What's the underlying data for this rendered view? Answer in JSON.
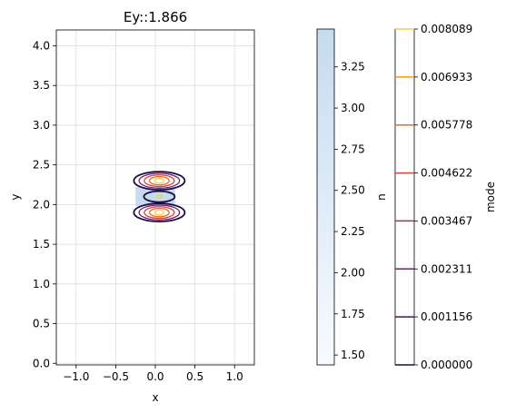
{
  "chart_data": {
    "type": "contour",
    "title": "Ey::1.866",
    "xlabel": "x",
    "ylabel": "y",
    "xlim": [
      -1.25,
      1.25
    ],
    "ylim": [
      -0.02,
      4.2
    ],
    "xticks": [
      "−1.0",
      "−0.5",
      "0.0",
      "0.5",
      "1.0"
    ],
    "xtick_values": [
      -1.0,
      -0.5,
      0.0,
      0.5,
      1.0
    ],
    "yticks": [
      "0.0",
      "0.5",
      "1.0",
      "1.5",
      "2.0",
      "2.5",
      "3.0",
      "3.5",
      "4.0"
    ],
    "ytick_values": [
      0.0,
      0.5,
      1.0,
      1.5,
      2.0,
      2.5,
      3.0,
      3.5,
      4.0
    ],
    "grid": true,
    "waveguide": {
      "x_range": [
        -0.25,
        0.25
      ],
      "y_range": [
        1.98,
        2.22
      ],
      "n": 3.48,
      "color": "#c6dbef"
    },
    "mode_lobes": [
      {
        "name": "upper",
        "cx": 0.05,
        "cy": 2.3,
        "levels": 5
      },
      {
        "name": "center",
        "cx": 0.05,
        "cy": 2.1,
        "levels": 2
      },
      {
        "name": "lower",
        "cx": 0.05,
        "cy": 1.9,
        "levels": 5
      }
    ],
    "colorbar_n": {
      "label": "n",
      "range": [
        1.44,
        3.48
      ],
      "ticks": [
        "1.50",
        "1.75",
        "2.00",
        "2.25",
        "2.50",
        "2.75",
        "3.00",
        "3.25"
      ],
      "tick_values": [
        1.5,
        1.75,
        2.0,
        2.25,
        2.5,
        2.75,
        3.0,
        3.25
      ],
      "color_low": "#f7fbff",
      "color_high": "#c6dbef"
    },
    "colorbar_mode": {
      "label": "mode",
      "range": [
        0.0,
        0.008089
      ],
      "ticks": [
        "0.000000",
        "0.001156",
        "0.002311",
        "0.003467",
        "0.004622",
        "0.005778",
        "0.006933",
        "0.008089"
      ],
      "tick_values": [
        0.0,
        0.001156,
        0.002311,
        0.003467,
        0.004622,
        0.005778,
        0.006933,
        0.008089
      ],
      "level_colors": [
        "#000004",
        "#1b0c41",
        "#4a0c6b",
        "#781c6d",
        "#a52c60",
        "#cf4446",
        "#ed6925",
        "#fb9b06",
        "#f7d13d"
      ]
    }
  }
}
